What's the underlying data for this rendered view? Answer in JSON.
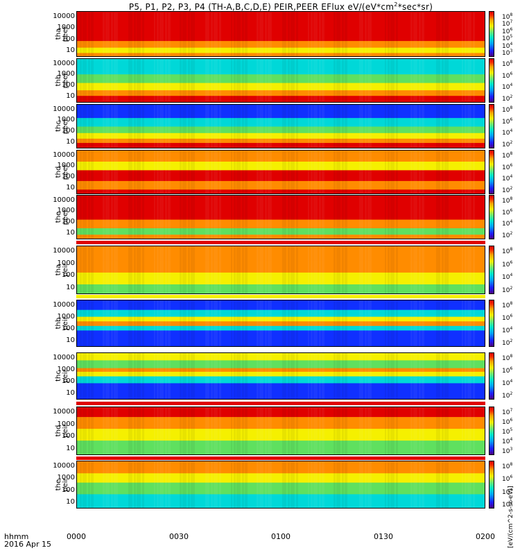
{
  "title": "P5, P1, P2, P3, P4 (TH-A,B,C,D,E) PEIR,PEER EFlux eV/(eV*cm",
  "title_sup": "2",
  "title_tail": "*sec*sr)",
  "colorbar_unit": "[eV/(cm^2-s-sr-eV)]",
  "x_axis": {
    "label_line1": "hhmm",
    "label_line2": "2016 Apr 15",
    "ticks": [
      "0000",
      "0030",
      "0100",
      "0130",
      "0200"
    ]
  },
  "chart_data": {
    "type": "heatmap",
    "title": "P5, P1, P2, P3, P4 (TH-A,B,C,D,E) PEIR,PEER EFlux eV/(eV*cm^2*sec*sr)",
    "x_range": [
      "0000",
      "0200"
    ],
    "y_scale": "log",
    "y_ticks": [
      "10",
      "100",
      "1000",
      "10000"
    ],
    "panels": [
      {
        "ylabel": [
          "tha",
          "peer"
        ],
        "cbar_ticks": [
          "10^8",
          "10^7",
          "10^6",
          "10^5",
          "10^4",
          "10^3"
        ]
      },
      {
        "ylabel": [
          "thb",
          "peer"
        ],
        "cbar_ticks": [
          "10^8",
          "10^6",
          "10^4",
          "10^2"
        ]
      },
      {
        "ylabel": [
          "thc",
          "peer"
        ],
        "cbar_ticks": [
          "10^8",
          "10^6",
          "10^4",
          "10^2"
        ]
      },
      {
        "ylabel": [
          "thd",
          "peer"
        ],
        "cbar_ticks": [
          "10^8",
          "10^6",
          "10^4",
          "10^2"
        ]
      },
      {
        "ylabel": [
          "the",
          "peer"
        ],
        "cbar_ticks": [
          "10^8",
          "10^6",
          "10^4",
          "10^2"
        ]
      },
      {
        "ylabel": [
          "tha",
          "peir"
        ],
        "cbar_ticks": [
          "10^8",
          "10^6",
          "10^4",
          "10^2"
        ]
      },
      {
        "ylabel": [
          "thb",
          "peir"
        ],
        "cbar_ticks": [
          "10^8",
          "10^6",
          "10^4",
          "10^2"
        ]
      },
      {
        "ylabel": [
          "thc",
          "peir"
        ],
        "cbar_ticks": [
          "10^8",
          "10^6",
          "10^4",
          "10^2"
        ]
      },
      {
        "ylabel": [
          "thd",
          "peir"
        ],
        "cbar_ticks": [
          "10^7",
          "10^6",
          "10^5",
          "10^4",
          "10^3"
        ]
      },
      {
        "ylabel": [
          "the",
          "peir"
        ],
        "cbar_ticks": [
          "10^8",
          "10^6",
          "10^4",
          "10^2"
        ]
      }
    ]
  },
  "colors": {
    "red": "#e00000",
    "orange": "#ff8c00",
    "yellow": "#f5f000",
    "green": "#5fe05f",
    "cyan": "#00d8d8",
    "blue": "#1030ff",
    "purple": "#5a00a0"
  }
}
